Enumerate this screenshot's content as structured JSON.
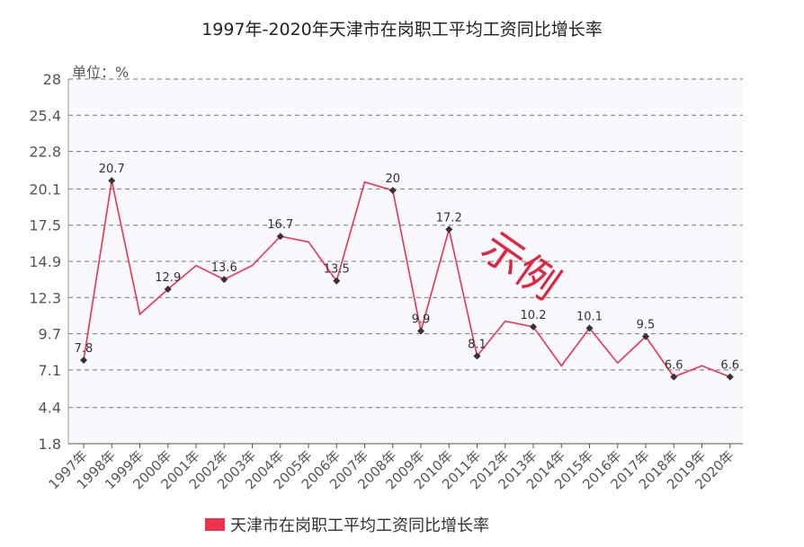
{
  "chart_data": {
    "type": "line",
    "title": "1997年-2020年天津市在岗职工平均工资同比增长率",
    "ylabel": "单位：%",
    "categories": [
      "1997年",
      "1998年",
      "1999年",
      "2000年",
      "2001年",
      "2002年",
      "2003年",
      "2004年",
      "2005年",
      "2006年",
      "2007年",
      "2008年",
      "2009年",
      "2010年",
      "2011年",
      "2012年",
      "2013年",
      "2014年",
      "2015年",
      "2016年",
      "2017年",
      "2018年",
      "2019年",
      "2020年"
    ],
    "yticks": [
      "1.8",
      "4.4",
      "7.1",
      "9.7",
      "12.3",
      "14.9",
      "17.5",
      "20.1",
      "22.8",
      "25.4",
      "28"
    ],
    "ylim": [
      1.8,
      28
    ],
    "series": [
      {
        "name": "天津市在岗职工平均工资同比增长率",
        "color": "#f0314f",
        "values": [
          7.8,
          20.7,
          11.1,
          12.9,
          14.6,
          13.6,
          14.6,
          16.7,
          16.3,
          13.5,
          20.6,
          20,
          9.9,
          17.2,
          8.1,
          10.6,
          10.2,
          7.4,
          10.1,
          7.6,
          9.5,
          6.6,
          7.4,
          6.6
        ],
        "labels": [
          "7.8",
          "20.7",
          "",
          "12.9",
          "",
          "13.6",
          "",
          "16.7",
          "",
          "13.5",
          "",
          "20",
          "9.9",
          "17.2",
          "8.1",
          "",
          "10.2",
          "",
          "10.1",
          "",
          "9.5",
          "6.6",
          "",
          "6.6"
        ]
      }
    ],
    "grid": true,
    "legend_position": "bottom"
  },
  "watermark": "示例"
}
